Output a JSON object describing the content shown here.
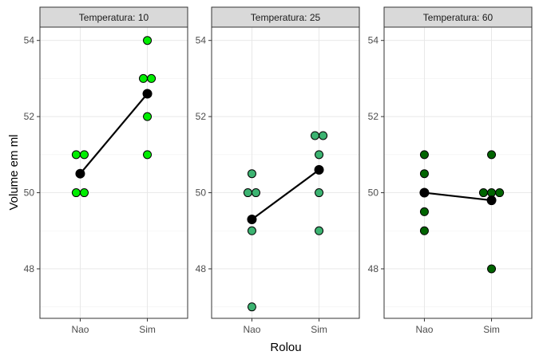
{
  "chart_data": {
    "type": "scatter",
    "xlabel": "Rolou",
    "ylabel": "Volume em ml",
    "categories": [
      "Nao",
      "Sim"
    ],
    "ylim": [
      46.7,
      54.35
    ],
    "yticks": [
      48,
      50,
      52,
      54
    ],
    "grid": true,
    "panels": [
      {
        "strip_label": "Temperatura: 10",
        "point_color": "#00ee00",
        "points": [
          {
            "x": "Nao",
            "y": 51,
            "jitter": -0.06
          },
          {
            "x": "Nao",
            "y": 51,
            "jitter": 0.06
          },
          {
            "x": "Nao",
            "y": 50,
            "jitter": -0.06
          },
          {
            "x": "Nao",
            "y": 50,
            "jitter": 0.06
          },
          {
            "x": "Sim",
            "y": 54,
            "jitter": 0.0
          },
          {
            "x": "Sim",
            "y": 53,
            "jitter": -0.06
          },
          {
            "x": "Sim",
            "y": 53,
            "jitter": 0.06
          },
          {
            "x": "Sim",
            "y": 52,
            "jitter": 0.0
          },
          {
            "x": "Sim",
            "y": 51,
            "jitter": 0.0
          }
        ],
        "means": [
          {
            "x": "Nao",
            "y": 50.5
          },
          {
            "x": "Sim",
            "y": 52.6
          }
        ]
      },
      {
        "strip_label": "Temperatura: 25",
        "point_color": "#3cb371",
        "points": [
          {
            "x": "Nao",
            "y": 50.5,
            "jitter": 0.0
          },
          {
            "x": "Nao",
            "y": 50,
            "jitter": -0.06
          },
          {
            "x": "Nao",
            "y": 50,
            "jitter": 0.06
          },
          {
            "x": "Nao",
            "y": 49,
            "jitter": 0.0
          },
          {
            "x": "Nao",
            "y": 47,
            "jitter": 0.0
          },
          {
            "x": "Sim",
            "y": 51.5,
            "jitter": -0.06
          },
          {
            "x": "Sim",
            "y": 51.5,
            "jitter": 0.06
          },
          {
            "x": "Sim",
            "y": 51,
            "jitter": 0.0
          },
          {
            "x": "Sim",
            "y": 50,
            "jitter": 0.0
          },
          {
            "x": "Sim",
            "y": 49,
            "jitter": 0.0
          }
        ],
        "means": [
          {
            "x": "Nao",
            "y": 49.3
          },
          {
            "x": "Sim",
            "y": 50.6
          }
        ]
      },
      {
        "strip_label": "Temperatura: 60",
        "point_color": "#006400",
        "points": [
          {
            "x": "Nao",
            "y": 51,
            "jitter": 0.0
          },
          {
            "x": "Nao",
            "y": 50.5,
            "jitter": 0.0
          },
          {
            "x": "Nao",
            "y": 50,
            "jitter": 0.0
          },
          {
            "x": "Nao",
            "y": 49.5,
            "jitter": 0.0
          },
          {
            "x": "Nao",
            "y": 49,
            "jitter": 0.0
          },
          {
            "x": "Sim",
            "y": 51,
            "jitter": 0.0
          },
          {
            "x": "Sim",
            "y": 50,
            "jitter": -0.12
          },
          {
            "x": "Sim",
            "y": 50,
            "jitter": 0.0
          },
          {
            "x": "Sim",
            "y": 50,
            "jitter": 0.12
          },
          {
            "x": "Sim",
            "y": 48,
            "jitter": 0.0
          }
        ],
        "means": [
          {
            "x": "Nao",
            "y": 50.0
          },
          {
            "x": "Sim",
            "y": 49.8
          }
        ]
      }
    ]
  }
}
